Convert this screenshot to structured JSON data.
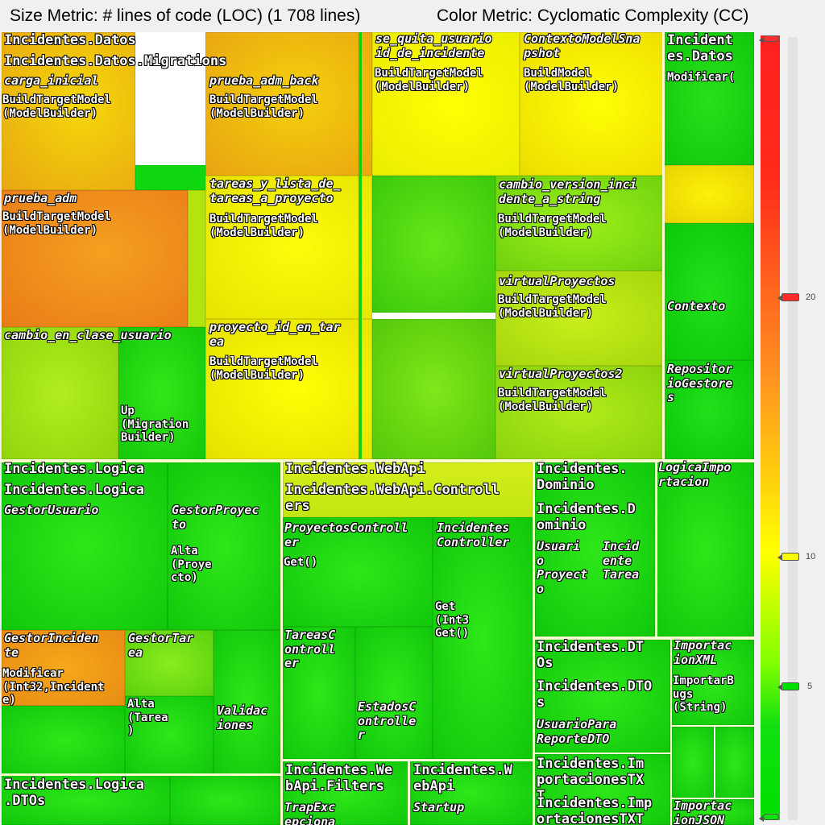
{
  "header": {
    "size_metric": "Size Metric: # lines of code (LOC) (1 708 lines)",
    "color_metric": "Color Metric: Cyclomatic Complexity (CC)"
  },
  "scale": {
    "ticks": [
      "20",
      "10",
      "5"
    ],
    "colors": {
      "high": "#ff2020",
      "mid": "#ffff00",
      "low": "#00e000"
    }
  },
  "labels": {
    "datos": "Incidentes.Datos",
    "datos_migrations": "Incidentes.Datos.Migrations",
    "carga_inicial": "carga_inicial",
    "btm": "BuildTargetModel\n(ModelBuilder)",
    "prueba_adm_back": "prueba_adm_back",
    "se_quita": "se_quita_usuario\nid_de_incidente",
    "contexto_snap": "ContextoModelSna\npshot",
    "build_model": "BuildModel\n(ModelBuilder)",
    "datos_right": "Incident\nes.Datos",
    "modificar": "Modificar(",
    "prueba_adm": "prueba_adm",
    "tareas_y_lista": "tareas_y_lista_de_\ntareas_a_proyecto",
    "cambio_version": "cambio_version_inci\ndente_a_string",
    "virtual_proyectos": "virtualProyectos",
    "contexto": "Contexto",
    "cambio_en_clase": "cambio_en_clase_usuario",
    "proyecto_id": "proyecto_id_en_tar\nea",
    "virtual_proyectos2": "virtualProyectos2",
    "repositorio": "Repositor\nioGestore\ns",
    "up_migration": "Up\n(Migration\nBuilder)",
    "logica": "Incidentes.Logica",
    "logica_inner": "Incidentes.Logica",
    "gestor_usuario": "GestorUsuario",
    "gestor_proyecto": "GestorProyec\nto",
    "alta_proyecto": "Alta\n(Proye\ncto)",
    "gestor_incidente": "GestorInciden\nte",
    "modificar_incidente": "Modificar\n(Int32,Incident\ne)",
    "gestor_tarea": "GestorTar\nea",
    "alta_tarea": "Alta\n(Tarea\n)",
    "validaciones": "Validac\niones",
    "logica_dtos": "Incidentes.Logica\n.DTOs",
    "webapi": "Incidentes.WebApi",
    "webapi_controllers": "Incidentes.WebApi.Controll\ners",
    "proyectos_controller": "ProyectosControll\ner",
    "get": "Get()",
    "incidentes_controller": "Incidentes\nController",
    "get_int": "Get\n(Int3\nGet()",
    "tareas_controller": "TareasC\nontroll\ner",
    "estados_controller": "EstadosC\nontrolle\nr",
    "webapi_filters": "Incidentes.We\nbApi.Filters",
    "trap": "TrapExc\nepciona",
    "webapi2": "Incidentes.W\nebApi",
    "startup": "Startup",
    "dominio": "Incidentes.\nDominio",
    "dominio_inner": "Incidentes.D\nominio",
    "usuario": "Usuari\no",
    "incidente_dom": "Incid\nente",
    "proyecto_dom": "Proyect\no",
    "tarea_dom": "Tarea",
    "logica_importacion": "LogicaImpo\nrtacion",
    "dto": "Incidentes.DT\nOs",
    "dto_inner": "Incidentes.DTO\ns",
    "usuario_reporte": "UsuarioPara\nReporteDTO",
    "importacion_xml": "Importac\nionXML",
    "importar_bugs": "ImportarB\nugs\n(String)",
    "importaciones_txt": "Incidentes.Im\nportacionesTX\nT",
    "importaciones_txt2": "Incidentes.Imp\nortacionesTXT",
    "importacion_json": "Importac\nionJSON"
  }
}
